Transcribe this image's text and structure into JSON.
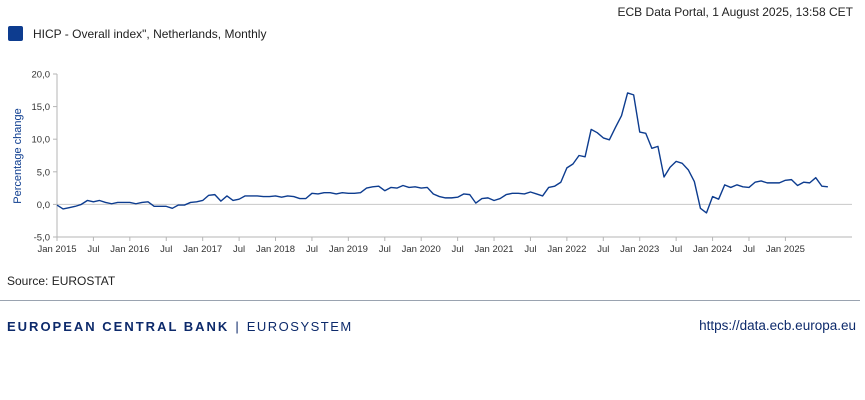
{
  "header": {
    "timestamp": "ECB Data Portal, 1 August 2025, 13:58 CET"
  },
  "legend": {
    "label": "HICP - Overall index\", Netherlands, Monthly",
    "color": "#0d3c8f"
  },
  "source": "Source: EUROSTAT",
  "footer": {
    "bank": "EUROPEAN CENTRAL BANK",
    "separator": "|",
    "system": "EUROSYSTEM",
    "url": "https://data.ecb.europa.eu"
  },
  "chart_data": {
    "type": "line",
    "title": "",
    "xlabel": "",
    "ylabel": "Percentage change",
    "ylim": [
      -5,
      20
    ],
    "yticks": [
      -5,
      0,
      5,
      10,
      15,
      20
    ],
    "ytick_labels": [
      "-5,0",
      "0,0",
      "5,0",
      "10,0",
      "15,0",
      "20,0"
    ],
    "xtick_labels": [
      "Jan 2015",
      "Jul",
      "Jan 2016",
      "Jul",
      "Jan 2017",
      "Jul",
      "Jan 2018",
      "Jul",
      "Jan 2019",
      "Jul",
      "Jan 2020",
      "Jul",
      "Jan 2021",
      "Jul",
      "Jan 2022",
      "Jul",
      "Jan 2023",
      "Jul",
      "Jan 2024",
      "Jul",
      "Jan 2025"
    ],
    "grid": "horizontal-zero-line",
    "line_color": "#0d3c8f",
    "series": [
      {
        "name": "HICP - Overall index\", Netherlands, Monthly",
        "start": "2015-01",
        "end": "2025-07",
        "frequency": "monthly",
        "values": [
          -0.1,
          -0.7,
          -0.5,
          -0.3,
          0.0,
          0.6,
          0.4,
          0.6,
          0.3,
          0.1,
          0.3,
          0.3,
          0.3,
          0.1,
          0.3,
          0.4,
          -0.3,
          -0.3,
          -0.3,
          -0.6,
          -0.1,
          -0.1,
          0.3,
          0.4,
          0.6,
          1.4,
          1.5,
          0.5,
          1.3,
          0.6,
          0.8,
          1.3,
          1.3,
          1.3,
          1.2,
          1.2,
          1.3,
          1.1,
          1.3,
          1.2,
          0.9,
          0.9,
          1.7,
          1.6,
          1.8,
          1.8,
          1.6,
          1.8,
          1.7,
          1.7,
          1.8,
          2.5,
          2.7,
          2.8,
          2.1,
          2.6,
          2.5,
          2.9,
          2.6,
          2.7,
          2.5,
          2.6,
          1.6,
          1.2,
          1.0,
          1.0,
          1.1,
          1.6,
          1.5,
          0.2,
          0.9,
          1.0,
          0.6,
          0.9,
          1.5,
          1.7,
          1.7,
          1.6,
          1.9,
          1.6,
          1.3,
          2.6,
          2.8,
          3.4,
          5.6,
          6.2,
          7.5,
          7.3,
          11.5,
          11.0,
          10.2,
          9.9,
          11.8,
          13.6,
          17.1,
          16.8,
          11.1,
          10.9,
          8.6,
          8.9,
          4.2,
          5.7,
          6.6,
          6.3,
          5.3,
          3.5,
          -0.6,
          -1.3,
          1.2,
          0.8,
          3.0,
          2.6,
          3.0,
          2.7,
          2.6,
          3.4,
          3.6,
          3.3,
          3.3,
          3.3,
          3.7,
          3.8,
          2.9,
          3.4,
          3.3,
          4.1,
          2.8,
          2.7
        ]
      }
    ]
  }
}
